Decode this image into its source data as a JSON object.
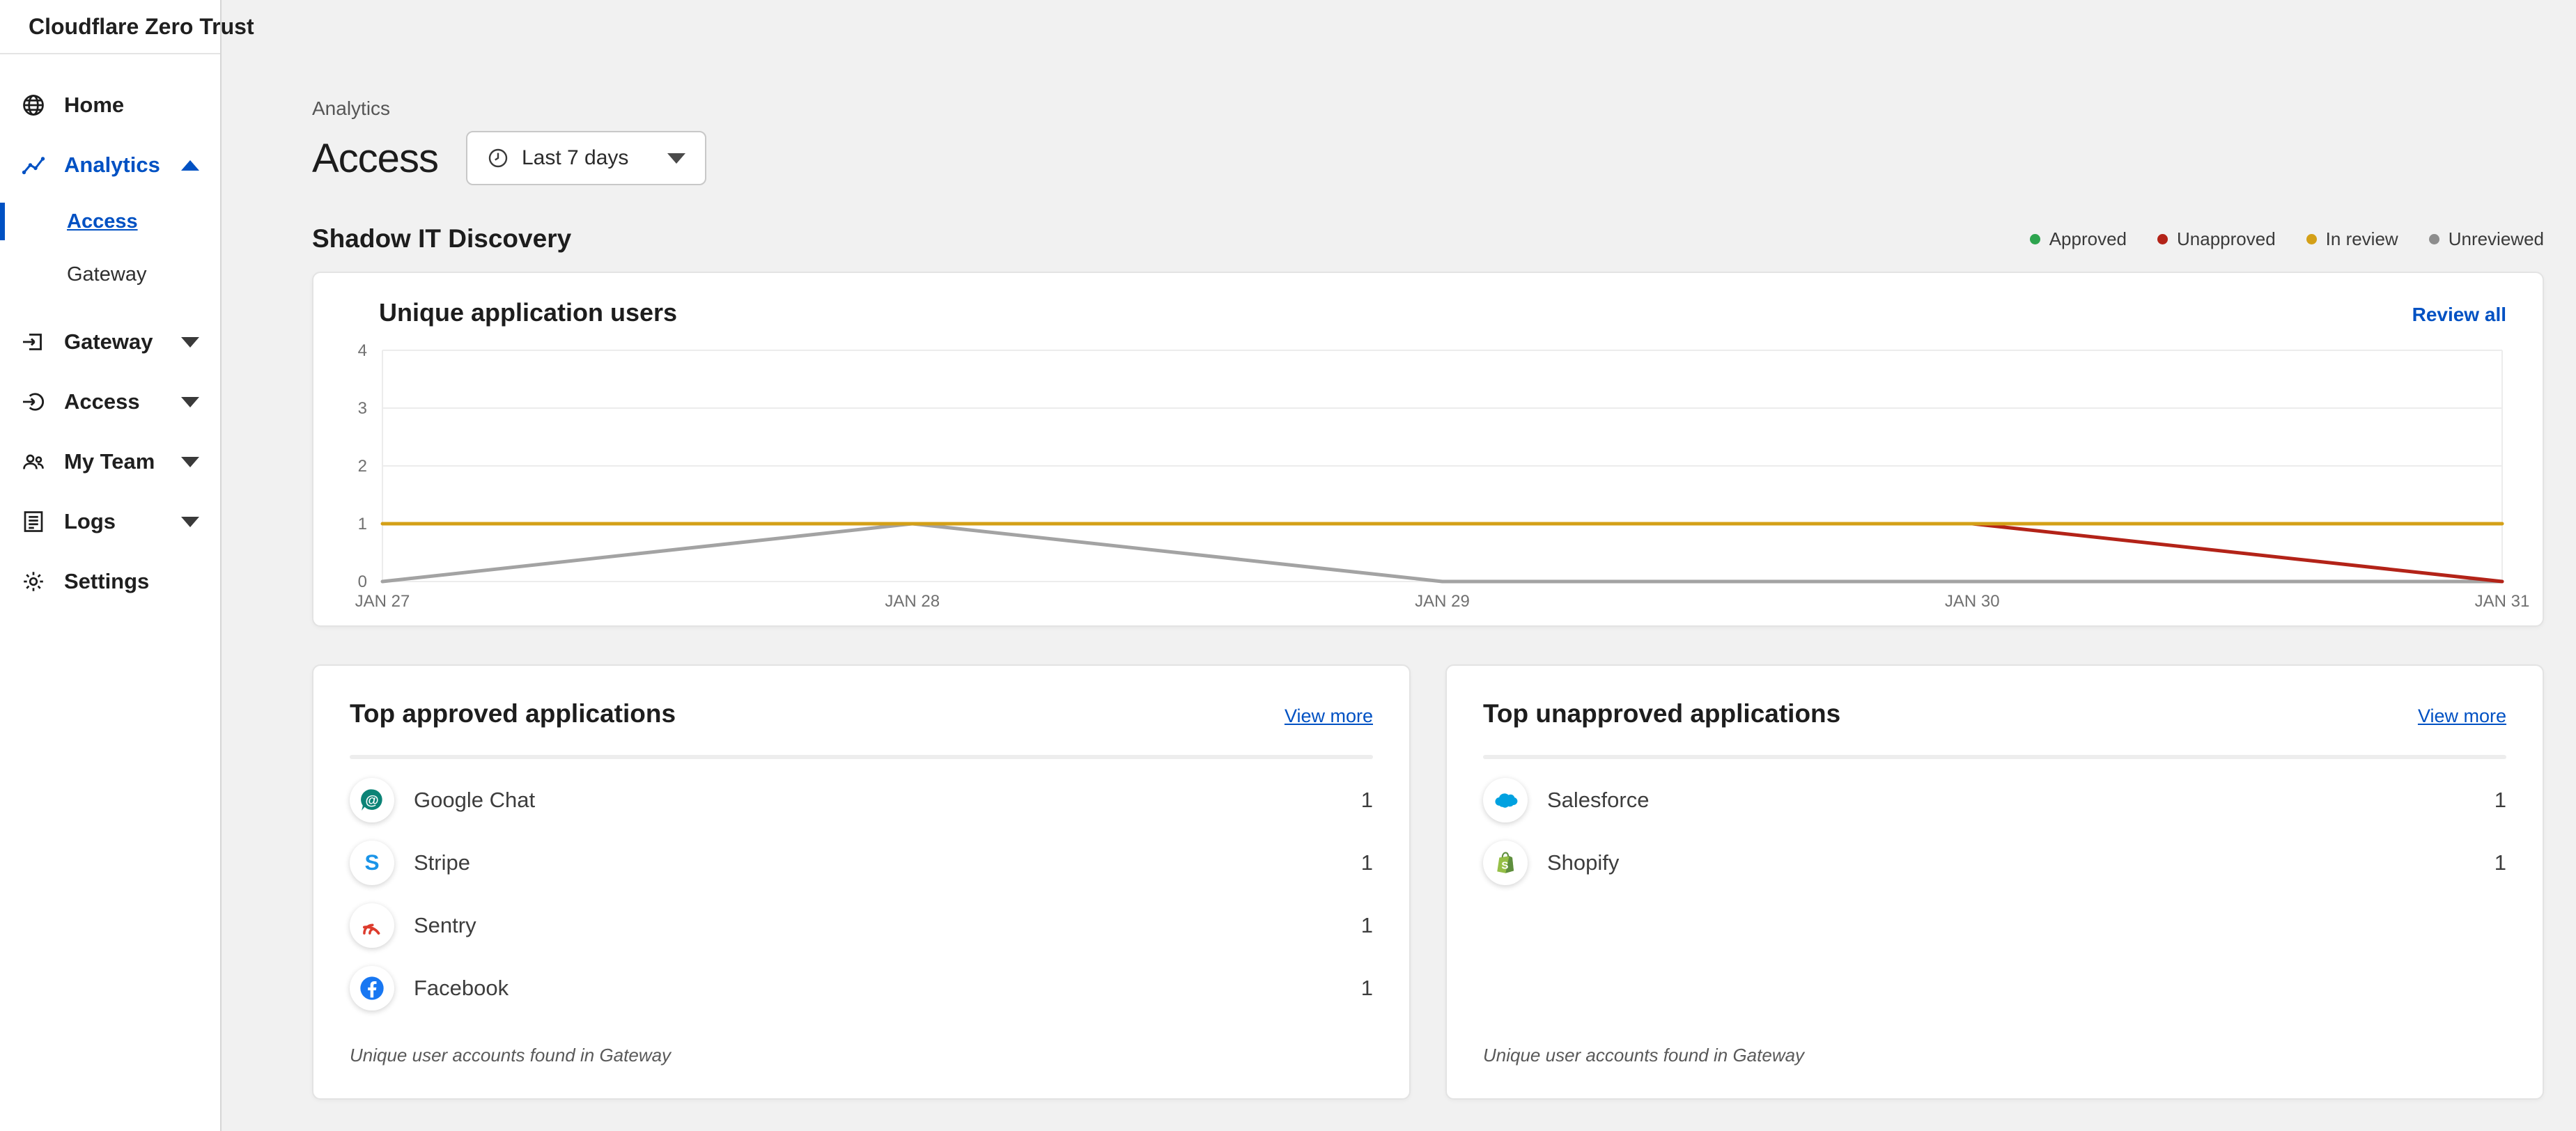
{
  "app": {
    "name": "Cloudflare Zero Trust"
  },
  "sidebar": {
    "items": [
      {
        "label": "Home",
        "icon": "globe"
      },
      {
        "label": "Analytics",
        "icon": "line-chart",
        "expanded": true,
        "children": [
          {
            "label": "Access",
            "active": true
          },
          {
            "label": "Gateway",
            "active": false
          }
        ]
      },
      {
        "label": "Gateway",
        "icon": "gateway"
      },
      {
        "label": "Access",
        "icon": "login-arrow"
      },
      {
        "label": "My Team",
        "icon": "people"
      },
      {
        "label": "Logs",
        "icon": "list-document"
      },
      {
        "label": "Settings",
        "icon": "gear"
      }
    ]
  },
  "header": {
    "breadcrumb": "Analytics",
    "title": "Access",
    "time_range_label": "Last 7 days"
  },
  "shadow_it": {
    "heading": "Shadow IT Discovery",
    "legend": [
      {
        "label": "Approved",
        "color": "#2da44e"
      },
      {
        "label": "Unapproved",
        "color": "#b32318"
      },
      {
        "label": "In review",
        "color": "#d4a017"
      },
      {
        "label": "Unreviewed",
        "color": "#8d8d8d"
      }
    ]
  },
  "chart_card": {
    "title": "Unique application users",
    "action_label": "Review all"
  },
  "chart_data": {
    "type": "line",
    "title": "Unique application users",
    "x_labels": [
      "JAN 27",
      "JAN 28",
      "JAN 29",
      "JAN 30",
      "JAN 31"
    ],
    "ylim": [
      0,
      4
    ],
    "yticks": [
      0,
      1,
      2,
      3,
      4
    ],
    "grid": true,
    "legend_position": "top-right-outside",
    "series": [
      {
        "name": "Unreviewed",
        "color": "#a3a3a3",
        "values": [
          0,
          1,
          0,
          0,
          0
        ]
      },
      {
        "name": "Unapproved",
        "color": "#b32318",
        "values": [
          null,
          null,
          null,
          1,
          0
        ]
      },
      {
        "name": "In review",
        "color": "#d4a017",
        "values": [
          1,
          1,
          1,
          1,
          1
        ]
      }
    ]
  },
  "approved_card": {
    "title": "Top approved applications",
    "action_label": "View more",
    "rows": [
      {
        "app": "Google Chat",
        "value": "1"
      },
      {
        "app": "Stripe",
        "value": "1"
      },
      {
        "app": "Sentry",
        "value": "1"
      },
      {
        "app": "Facebook",
        "value": "1"
      }
    ],
    "footnote": "Unique user accounts found in Gateway"
  },
  "unapproved_card": {
    "title": "Top unapproved applications",
    "action_label": "View more",
    "rows": [
      {
        "app": "Salesforce",
        "value": "1"
      },
      {
        "app": "Shopify",
        "value": "1"
      }
    ],
    "footnote": "Unique user accounts found in Gateway"
  },
  "colors": {
    "brand_blue": "#0051c3",
    "page_bg": "#f1f1f1",
    "card_border": "#e3e3e3",
    "grid_line": "#ececec",
    "axis_text": "#707070"
  }
}
